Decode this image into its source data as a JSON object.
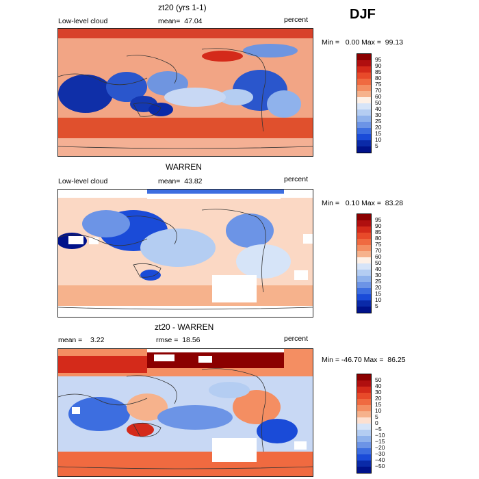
{
  "season": "DJF",
  "panels": [
    {
      "title": "zt20 (yrs 1-1)",
      "left_label": "Low-level cloud",
      "center_label": "mean=  47.04",
      "right_label": "percent",
      "minmax": "Min =   0.00 Max =  99.13",
      "colorbar_labels": [
        "95",
        "90",
        "85",
        "80",
        "75",
        "70",
        "60",
        "50",
        "40",
        "30",
        "25",
        "20",
        "15",
        "10",
        "5"
      ],
      "colorbar_colors": [
        "#8b0000",
        "#b00f0f",
        "#d42a1a",
        "#e84a2a",
        "#f06a40",
        "#f48e62",
        "#f6b28c",
        "#fdf0e6",
        "#d6e4f8",
        "#b4cdf2",
        "#8fb2ec",
        "#6c94e6",
        "#3d6ee0",
        "#1a4bd8",
        "#0a2aa8",
        "#00128a"
      ]
    },
    {
      "title": "WARREN",
      "left_label": "Low-level cloud",
      "center_label": "mean=  43.82",
      "right_label": "percent",
      "minmax": "Min =   0.10 Max =  83.28",
      "colorbar_labels": [
        "95",
        "90",
        "85",
        "80",
        "75",
        "70",
        "60",
        "50",
        "40",
        "30",
        "25",
        "20",
        "15",
        "10",
        "5"
      ],
      "colorbar_colors": [
        "#8b0000",
        "#b00f0f",
        "#d42a1a",
        "#e84a2a",
        "#f06a40",
        "#f48e62",
        "#f6b28c",
        "#fdf0e6",
        "#d6e4f8",
        "#b4cdf2",
        "#8fb2ec",
        "#6c94e6",
        "#3d6ee0",
        "#1a4bd8",
        "#0a2aa8",
        "#00128a"
      ]
    },
    {
      "title": "zt20 - WARREN",
      "left_label": "mean =    3.22",
      "center_label": "rmse =  18.56",
      "right_label": "percent",
      "minmax": "Min = -46.70 Max =  86.25",
      "colorbar_labels": [
        "50",
        "40",
        "30",
        "20",
        "15",
        "10",
        "5",
        "0",
        "−5",
        "−10",
        "−15",
        "−20",
        "−30",
        "−40",
        "−50"
      ],
      "colorbar_colors": [
        "#8b0000",
        "#b00f0f",
        "#d42a1a",
        "#e84a2a",
        "#f06a40",
        "#f48e62",
        "#f6b28c",
        "#fde0d0",
        "#d6e4f8",
        "#b4cdf2",
        "#8fb2ec",
        "#6c94e6",
        "#3d6ee0",
        "#1a4bd8",
        "#0a2aa8",
        "#00128a"
      ]
    }
  ]
}
